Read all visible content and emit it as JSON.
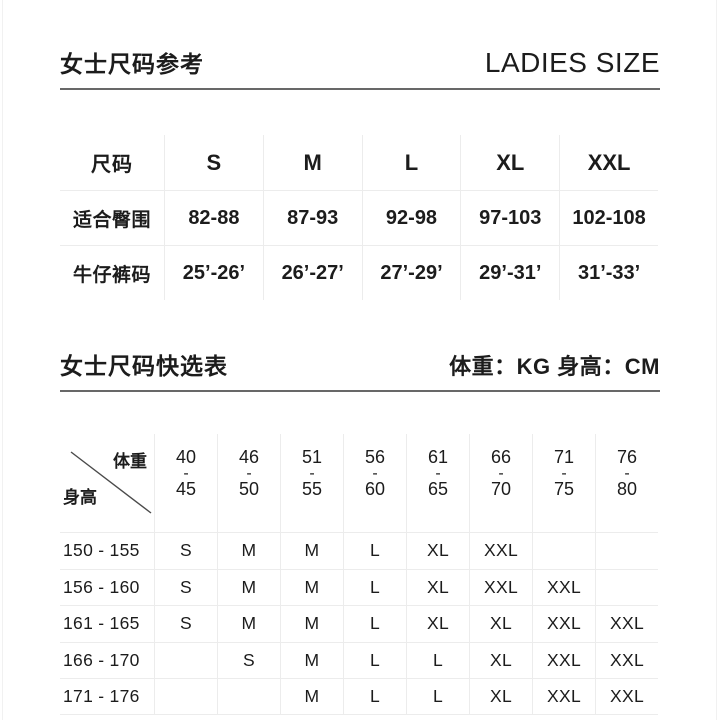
{
  "colors": {
    "text": "#1c1c1c",
    "grid_line": "#ececec",
    "section_rule": "#686868",
    "diagonal_line": "#4a4a4a",
    "background": "#ffffff"
  },
  "section1": {
    "title_zh": "女士尺码参考",
    "title_en": "LADIES SIZE"
  },
  "size_table": {
    "columns": [
      "尺码",
      "S",
      "M",
      "L",
      "XL",
      "XXL"
    ],
    "rows": [
      {
        "label": "适合臀围",
        "values": [
          "82-88",
          "87-93",
          "92-98",
          "97-103",
          "102-108"
        ]
      },
      {
        "label": "牛仔裤码",
        "values": [
          "25’-26’",
          "26’-27’",
          "27’-29’",
          "29’-31’",
          "31’-33’"
        ]
      }
    ]
  },
  "section2": {
    "title_zh": "女士尺码快选表",
    "units_label": "体重：KG 身高：CM"
  },
  "quick_table": {
    "corner": {
      "top_right": "体重",
      "bottom_left": "身高"
    },
    "weight_columns": [
      [
        "40",
        "45"
      ],
      [
        "46",
        "50"
      ],
      [
        "51",
        "55"
      ],
      [
        "56",
        "60"
      ],
      [
        "61",
        "65"
      ],
      [
        "66",
        "70"
      ],
      [
        "71",
        "75"
      ],
      [
        "76",
        "80"
      ]
    ],
    "rows": [
      {
        "height": "150 - 155",
        "sizes": [
          "S",
          "M",
          "M",
          "L",
          "XL",
          "XXL",
          "",
          ""
        ]
      },
      {
        "height": "156 - 160",
        "sizes": [
          "S",
          "M",
          "M",
          "L",
          "XL",
          "XXL",
          "XXL",
          ""
        ]
      },
      {
        "height": "161 - 165",
        "sizes": [
          "S",
          "M",
          "M",
          "L",
          "XL",
          "XL",
          "XXL",
          "XXL"
        ]
      },
      {
        "height": "166 - 170",
        "sizes": [
          "",
          "S",
          "M",
          "L",
          "L",
          "XL",
          "XXL",
          "XXL"
        ]
      },
      {
        "height": "171 - 176",
        "sizes": [
          "",
          "",
          "M",
          "L",
          "L",
          "XL",
          "XXL",
          "XXL"
        ]
      }
    ]
  }
}
